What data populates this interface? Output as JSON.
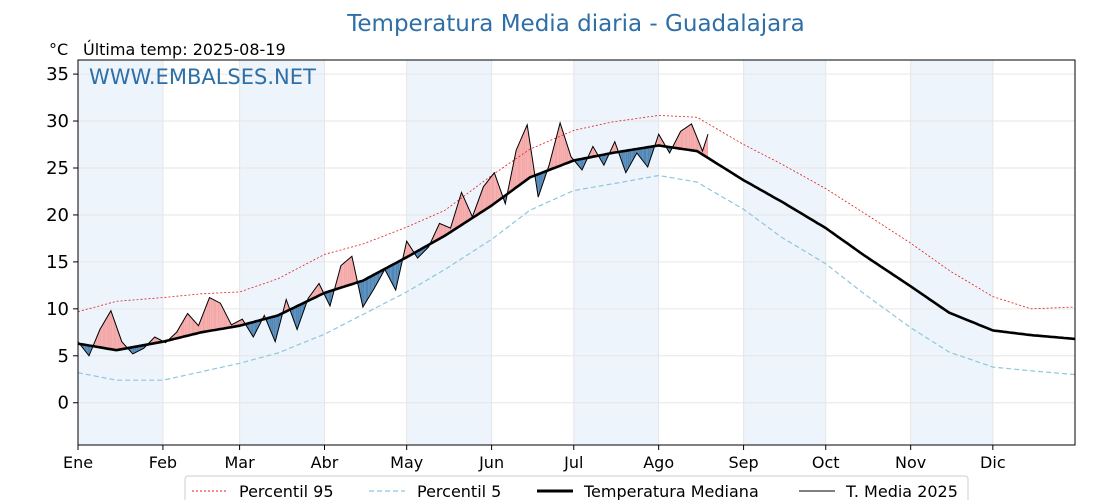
{
  "title": "Temperatura Media diaria - Guadalajara",
  "unit_label": "°C",
  "last_temp": "Última temp: 2025-08-19",
  "watermark": "WWW.EMBALSES.NET",
  "legend": {
    "p95": "Percentil 95",
    "p5": "Percentil 5",
    "median": "Temperatura Mediana",
    "current": "T. Media 2025"
  },
  "colors": {
    "title": "#2e6fa7",
    "p95": "#e31a1c",
    "p5": "#8ec7dc",
    "median": "#000000",
    "current": "#000000",
    "above_fill": "#f4a7a7",
    "below_fill": "#4f86b6",
    "band": "#eef4fb"
  },
  "chart_data": {
    "type": "line",
    "title": "Temperatura Media diaria - Guadalajara",
    "ylabel": "°C",
    "ylim": [
      -4.5,
      36.5
    ],
    "yticks": [
      0,
      5,
      10,
      15,
      20,
      25,
      30,
      35
    ],
    "months": [
      "Ene",
      "Feb",
      "Mar",
      "Abr",
      "May",
      "Jun",
      "Jul",
      "Ago",
      "Sep",
      "Oct",
      "Nov",
      "Dic"
    ],
    "grid": true,
    "legend_position": "bottom",
    "last_day_2025": "2025-08-19",
    "series": [
      {
        "name": "Percentil 95",
        "style": "dotted-red",
        "x": [
          1,
          15,
          32,
          46,
          60,
          74,
          91,
          105,
          121,
          135,
          152,
          166,
          182,
          196,
          213,
          227,
          244,
          258,
          274,
          288,
          305,
          319,
          335,
          349,
          365
        ],
        "values": [
          9.7,
          10.8,
          11.2,
          11.6,
          11.8,
          13.2,
          15.8,
          16.9,
          18.7,
          20.5,
          24.2,
          27.0,
          29.0,
          29.9,
          30.6,
          30.4,
          27.5,
          25.4,
          22.8,
          20.2,
          17.0,
          14.1,
          11.3,
          10.0,
          10.2
        ]
      },
      {
        "name": "Percentil 5",
        "style": "dashed-lightblue",
        "x": [
          1,
          15,
          32,
          46,
          60,
          74,
          91,
          105,
          121,
          135,
          152,
          166,
          182,
          196,
          213,
          227,
          244,
          258,
          274,
          288,
          305,
          319,
          335,
          349,
          365
        ],
        "values": [
          3.2,
          2.4,
          2.4,
          3.3,
          4.2,
          5.3,
          7.3,
          9.4,
          11.8,
          14.2,
          17.4,
          20.5,
          22.6,
          23.3,
          24.2,
          23.5,
          20.6,
          17.6,
          14.8,
          11.6,
          8.0,
          5.4,
          3.8,
          3.4,
          3.0
        ]
      },
      {
        "name": "Temperatura Mediana",
        "style": "thick-black",
        "x": [
          1,
          15,
          32,
          46,
          60,
          74,
          91,
          105,
          121,
          135,
          152,
          166,
          182,
          196,
          213,
          227,
          244,
          258,
          274,
          288,
          305,
          319,
          335,
          349,
          365
        ],
        "values": [
          6.3,
          5.6,
          6.5,
          7.5,
          8.2,
          9.3,
          11.7,
          13.0,
          15.5,
          17.8,
          21.0,
          24.0,
          25.8,
          26.6,
          27.4,
          26.8,
          23.7,
          21.4,
          18.6,
          15.7,
          12.4,
          9.6,
          7.7,
          7.2,
          6.8
        ]
      },
      {
        "name": "T. Media 2025",
        "style": "thin-black",
        "x": [
          1,
          5,
          9,
          13,
          17,
          21,
          25,
          29,
          33,
          37,
          41,
          45,
          49,
          53,
          57,
          61,
          65,
          69,
          73,
          77,
          81,
          85,
          89,
          93,
          97,
          101,
          105,
          109,
          113,
          117,
          121,
          125,
          129,
          133,
          137,
          141,
          145,
          149,
          153,
          157,
          161,
          165,
          169,
          173,
          177,
          181,
          185,
          189,
          193,
          197,
          201,
          205,
          209,
          213,
          217,
          221,
          225,
          229,
          231
        ],
        "values": [
          6.5,
          5.0,
          7.8,
          9.8,
          6.5,
          5.2,
          5.8,
          7.0,
          6.4,
          7.5,
          9.5,
          8.2,
          11.2,
          10.6,
          8.3,
          8.9,
          7.0,
          9.3,
          6.5,
          11.0,
          7.8,
          11.1,
          12.7,
          10.3,
          14.6,
          15.6,
          10.2,
          12.1,
          14.2,
          12.0,
          17.2,
          15.4,
          16.6,
          19.1,
          18.6,
          22.4,
          19.8,
          23.0,
          24.5,
          21.2,
          26.9,
          29.6,
          21.9,
          25.3,
          29.8,
          26.2,
          24.8,
          27.3,
          25.3,
          27.8,
          24.5,
          26.6,
          25.1,
          28.6,
          26.6,
          28.9,
          29.7,
          26.8,
          28.6
        ]
      }
    ]
  }
}
